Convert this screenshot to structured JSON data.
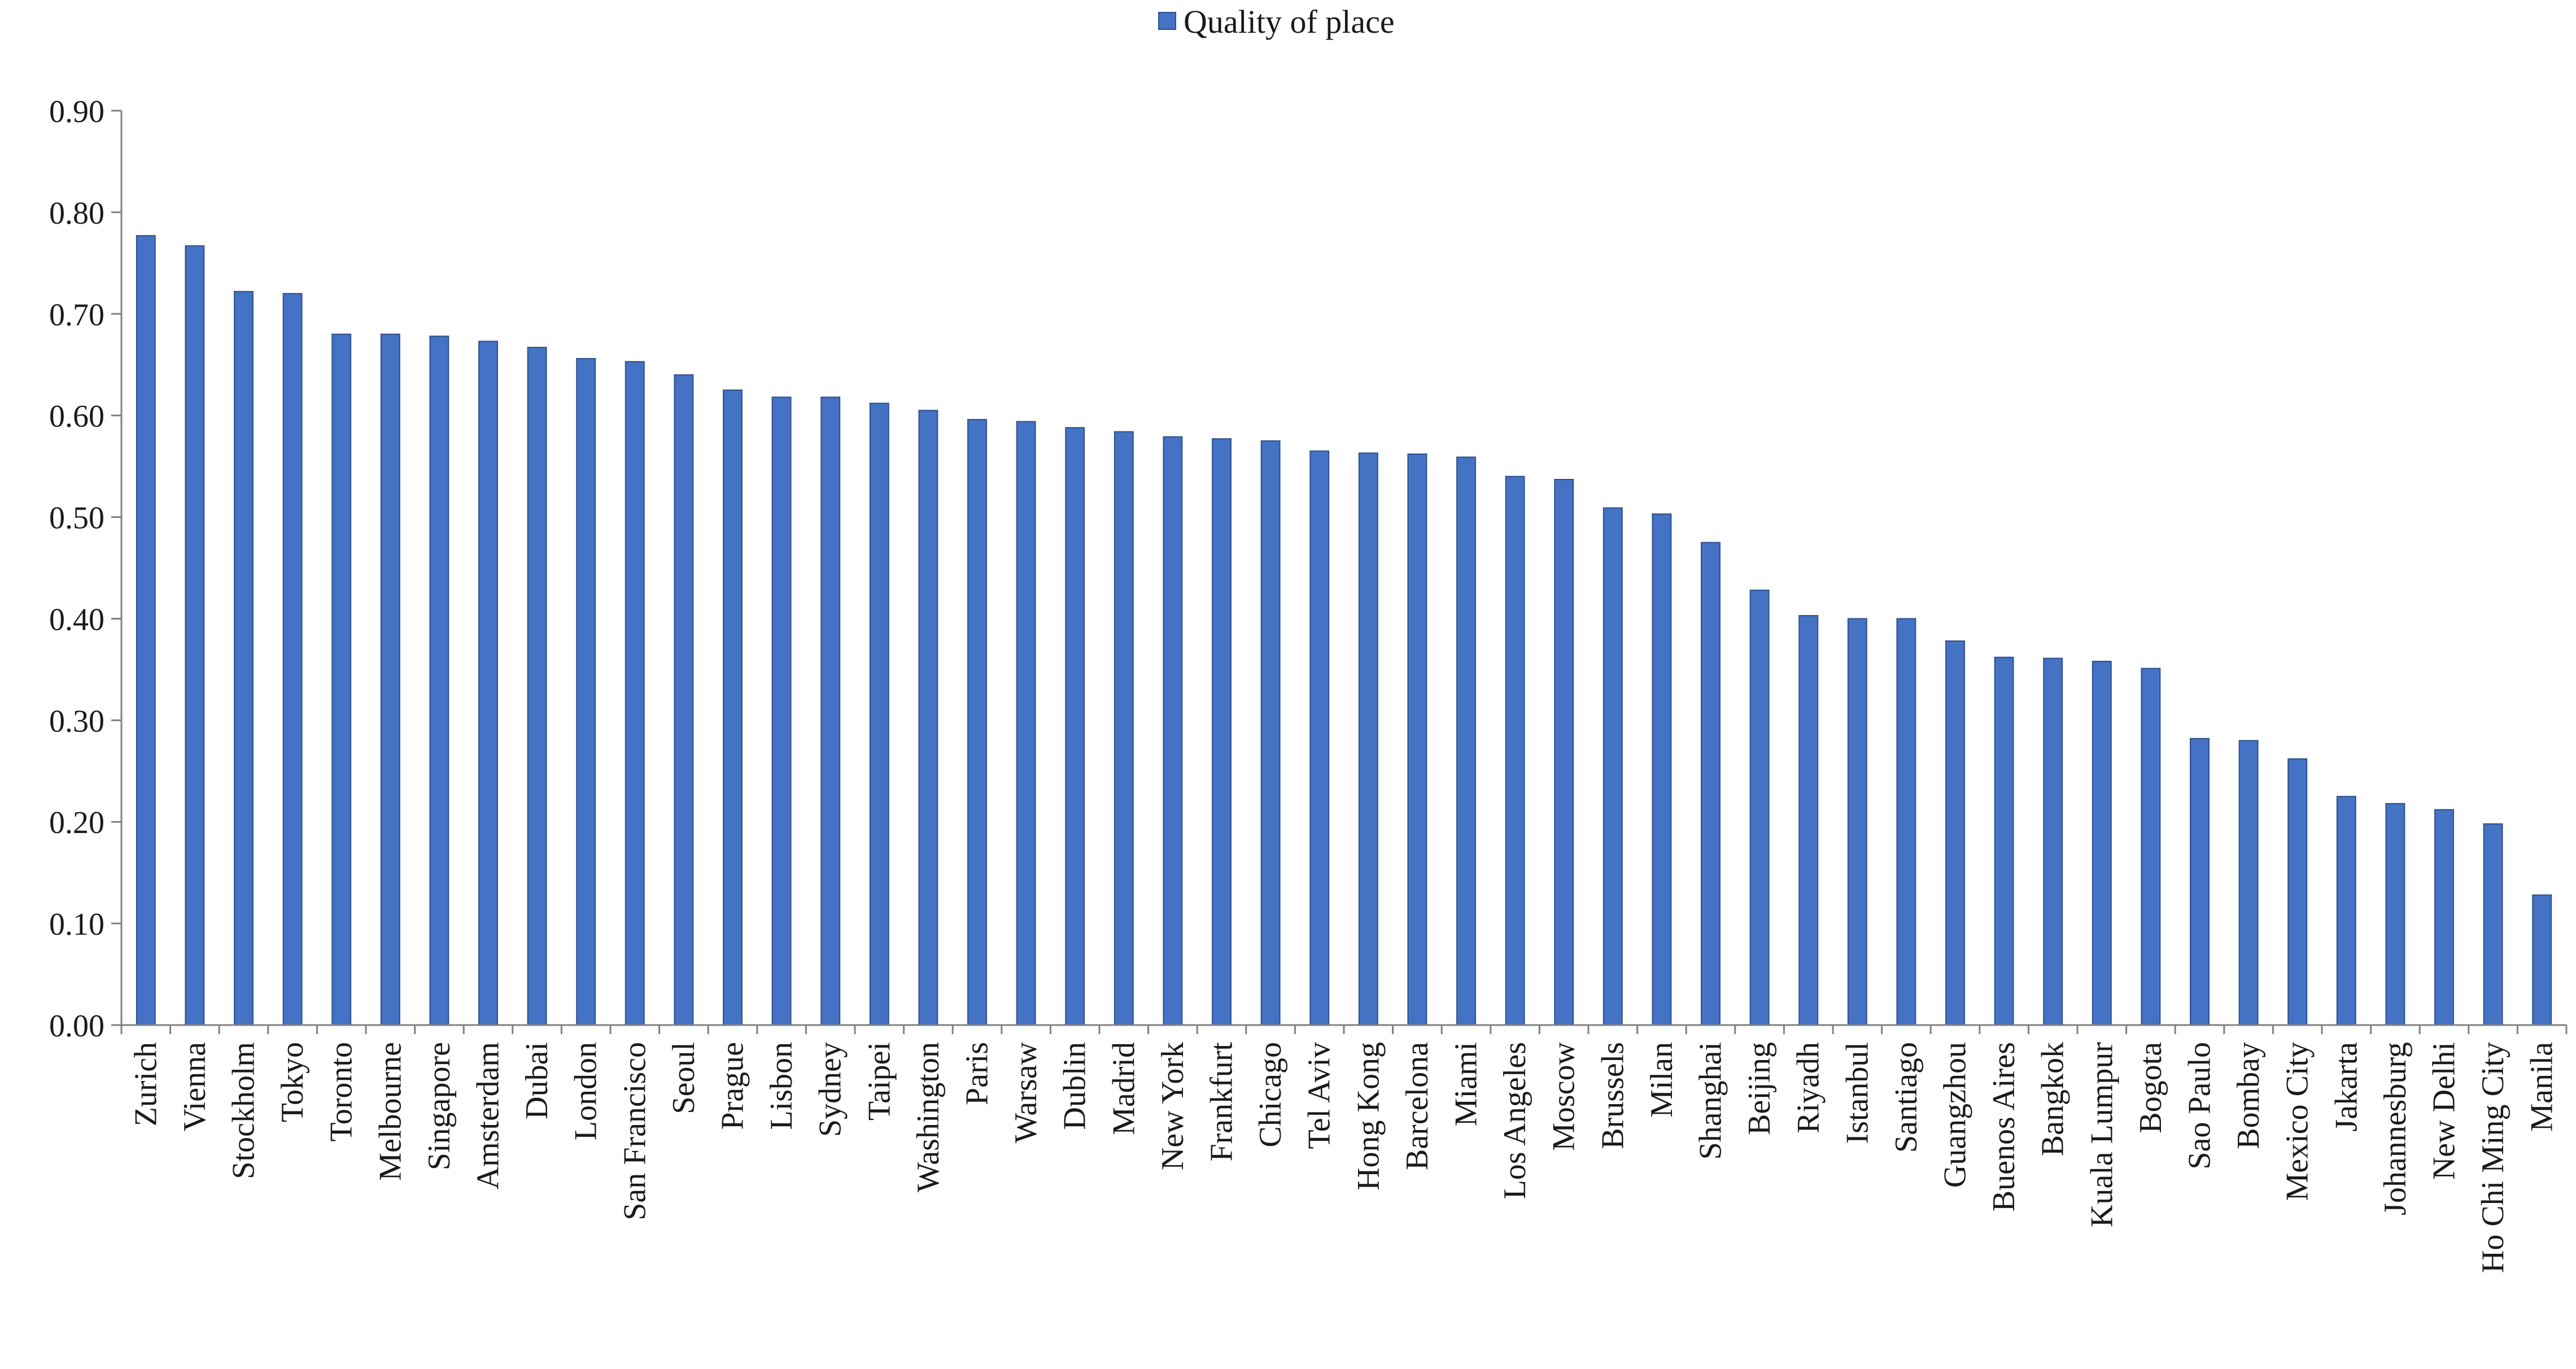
{
  "chart_data": {
    "type": "bar",
    "title": "",
    "xlabel": "",
    "ylabel": "",
    "ylim": [
      0,
      0.9
    ],
    "yticks": [
      "0.00",
      "0.10",
      "0.20",
      "0.30",
      "0.40",
      "0.50",
      "0.60",
      "0.70",
      "0.80",
      "0.90"
    ],
    "legend_position": "top-center",
    "grid": false,
    "bar_color": "#4472c4",
    "categories": [
      "Zurich",
      "Vienna",
      "Stockholm",
      "Tokyo",
      "Toronto",
      "Melbourne",
      "Singapore",
      "Amsterdam",
      "Dubai",
      "London",
      "San Francisco",
      "Seoul",
      "Prague",
      "Lisbon",
      "Sydney",
      "Taipei",
      "Washington",
      "Paris",
      "Warsaw",
      "Dublin",
      "Madrid",
      "New York",
      "Frankfurt",
      "Chicago",
      "Tel Aviv",
      "Hong Kong",
      "Barcelona",
      "Miami",
      "Los Angeles",
      "Moscow",
      "Brussels",
      "Milan",
      "Shanghai",
      "Beijing",
      "Riyadh",
      "Istanbul",
      "Santiago",
      "Guangzhou",
      "Buenos Aires",
      "Bangkok",
      "Kuala Lumpur",
      "Bogota",
      "Sao Paulo",
      "Bombay",
      "Mexico City",
      "Jakarta",
      "Johannesburg",
      "New Delhi",
      "Ho Chi Ming City",
      "Manila"
    ],
    "series": [
      {
        "name": "Quality of place",
        "values": [
          0.777,
          0.767,
          0.722,
          0.72,
          0.68,
          0.68,
          0.678,
          0.673,
          0.667,
          0.656,
          0.653,
          0.64,
          0.625,
          0.618,
          0.618,
          0.612,
          0.605,
          0.596,
          0.594,
          0.588,
          0.584,
          0.579,
          0.577,
          0.575,
          0.565,
          0.563,
          0.562,
          0.559,
          0.54,
          0.537,
          0.509,
          0.503,
          0.475,
          0.428,
          0.403,
          0.4,
          0.4,
          0.378,
          0.362,
          0.361,
          0.358,
          0.351,
          0.282,
          0.28,
          0.262,
          0.225,
          0.218,
          0.212,
          0.198,
          0.128
        ]
      }
    ]
  }
}
